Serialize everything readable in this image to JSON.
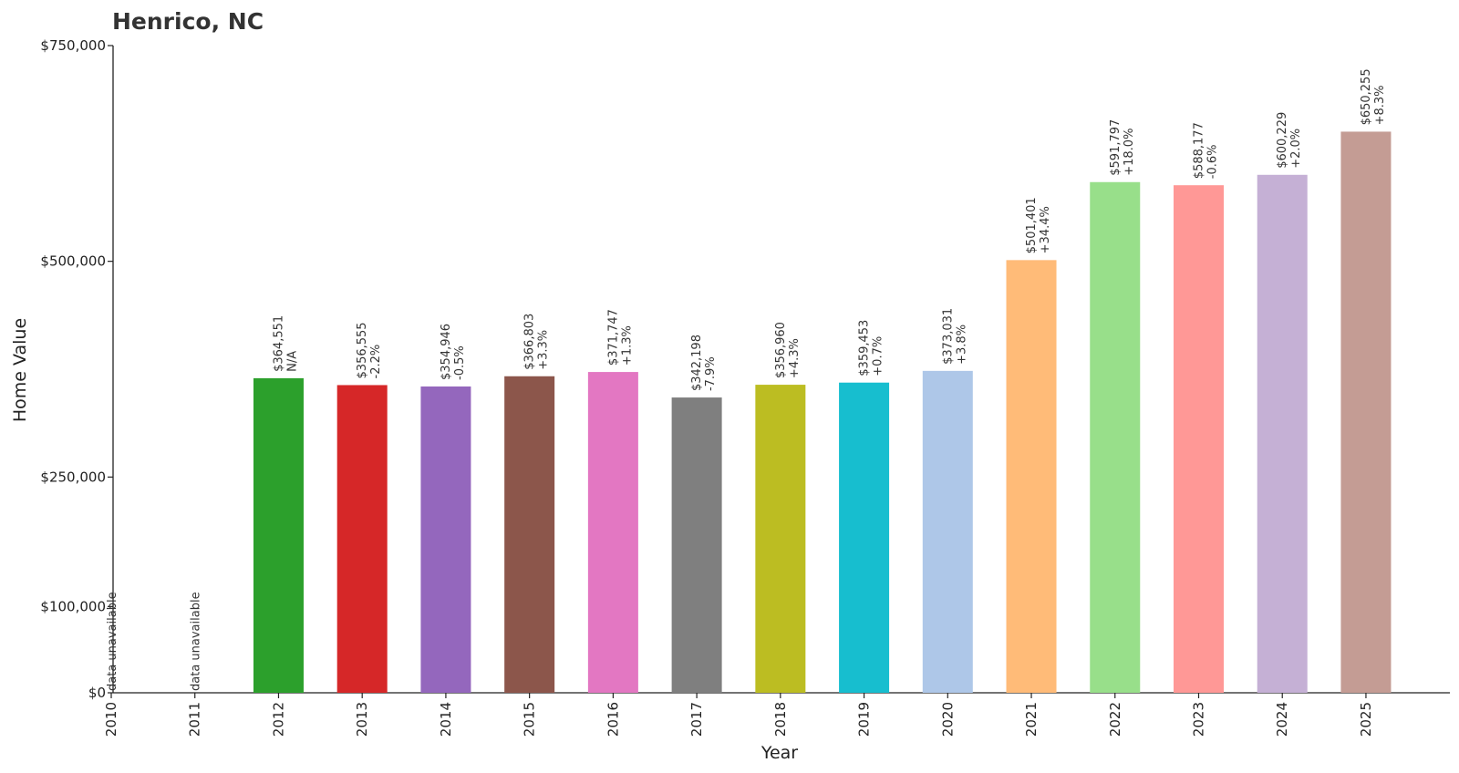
{
  "chart_data": {
    "type": "bar",
    "title": "Henrico, NC",
    "xlabel": "Year",
    "ylabel": "Home Value",
    "ylim": [
      0,
      750000
    ],
    "yticks": [
      {
        "value": 0,
        "label": "$0"
      },
      {
        "value": 100000,
        "label": "$100,000"
      },
      {
        "value": 250000,
        "label": "$250,000"
      },
      {
        "value": 500000,
        "label": "$500,000"
      },
      {
        "value": 750000,
        "label": "$750,000"
      }
    ],
    "categories": [
      "2010",
      "2011",
      "2012",
      "2013",
      "2014",
      "2015",
      "2016",
      "2017",
      "2018",
      "2019",
      "2020",
      "2021",
      "2022",
      "2023",
      "2024",
      "2025"
    ],
    "values": [
      null,
      null,
      364551,
      356555,
      354946,
      366803,
      371747,
      342198,
      356960,
      359453,
      373031,
      501401,
      591797,
      588177,
      600229,
      650255
    ],
    "value_labels": [
      "",
      "",
      "$364,551",
      "$356,555",
      "$354,946",
      "$366,803",
      "$371,747",
      "$342,198",
      "$356,960",
      "$359,453",
      "$373,031",
      "$501,401",
      "$591,797",
      "$588,177",
      "$600,229",
      "$650,255"
    ],
    "change_labels": [
      "",
      "",
      "N/A",
      "-2.2%",
      "-0.5%",
      "+3.3%",
      "+1.3%",
      "-7.9%",
      "+4.3%",
      "+0.7%",
      "+3.8%",
      "+34.4%",
      "+18.0%",
      "-0.6%",
      "+2.0%",
      "+8.3%"
    ],
    "missing_label": "data unavailable",
    "colors": [
      "#1f77b4",
      "#ff7f0e",
      "#2ca02c",
      "#d62728",
      "#9467bd",
      "#8c564b",
      "#e377c2",
      "#7f7f7f",
      "#bcbd22",
      "#17becf",
      "#aec7e8",
      "#ffbb78",
      "#98df8a",
      "#ff9896",
      "#c5b0d5",
      "#c49c94"
    ]
  }
}
